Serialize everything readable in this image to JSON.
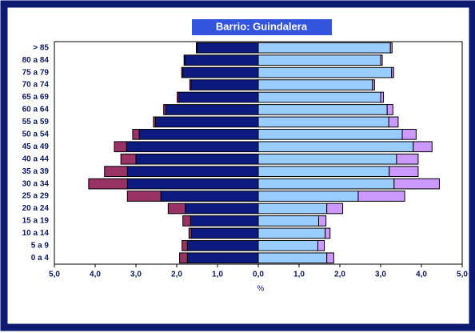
{
  "chart_data": {
    "type": "pyramid",
    "title": "Barrio: Guindalera",
    "xlabel": "%",
    "categories": [
      "0 a 4",
      "5 a 9",
      "10 a 14",
      "15 a 19",
      "20 a 24",
      "25 a 29",
      "30 a 34",
      "35 a 39",
      "40 a 44",
      "45 a 49",
      "50 a 54",
      "55 a 59",
      "60 a 64",
      "65 a 69",
      "70 a 74",
      "75 a 79",
      "80 a 84",
      "> 85"
    ],
    "series": [
      {
        "side": "left",
        "color": "#0d1a80",
        "values": [
          1.74,
          1.74,
          1.64,
          1.66,
          1.79,
          2.39,
          3.21,
          3.21,
          3.0,
          3.23,
          2.92,
          2.52,
          2.27,
          1.95,
          1.65,
          1.85,
          1.8,
          1.5
        ]
      },
      {
        "side": "left",
        "color": "#993366",
        "values": [
          0.19,
          0.13,
          0.06,
          0.19,
          0.42,
          0.82,
          0.95,
          0.56,
          0.37,
          0.3,
          0.16,
          0.05,
          0.05,
          0.04,
          0.03,
          0.03,
          0.02,
          0.02
        ]
      },
      {
        "side": "right",
        "color": "#99ccff",
        "values": [
          1.68,
          1.46,
          1.64,
          1.48,
          1.68,
          2.45,
          3.33,
          3.21,
          3.39,
          3.8,
          3.53,
          3.2,
          3.16,
          3.0,
          2.8,
          3.27,
          3.0,
          3.24
        ]
      },
      {
        "side": "right",
        "color": "#cc99ff",
        "values": [
          0.17,
          0.16,
          0.12,
          0.18,
          0.39,
          1.14,
          1.11,
          0.71,
          0.53,
          0.46,
          0.34,
          0.23,
          0.14,
          0.07,
          0.05,
          0.05,
          0.04,
          0.04
        ]
      }
    ],
    "xlim": [
      -5,
      5
    ],
    "xticks": [
      {
        "value": -5,
        "label": "5,0"
      },
      {
        "value": -4,
        "label": "4,0"
      },
      {
        "value": -3,
        "label": "3,0"
      },
      {
        "value": -2,
        "label": "2,0"
      },
      {
        "value": -1,
        "label": "1,0"
      },
      {
        "value": 0,
        "label": "0,0"
      },
      {
        "value": 1,
        "label": "1,0"
      },
      {
        "value": 2,
        "label": "2,0"
      },
      {
        "value": 3,
        "label": "3,0"
      },
      {
        "value": 4,
        "label": "4,0"
      },
      {
        "value": 5,
        "label": "5,0"
      }
    ]
  }
}
